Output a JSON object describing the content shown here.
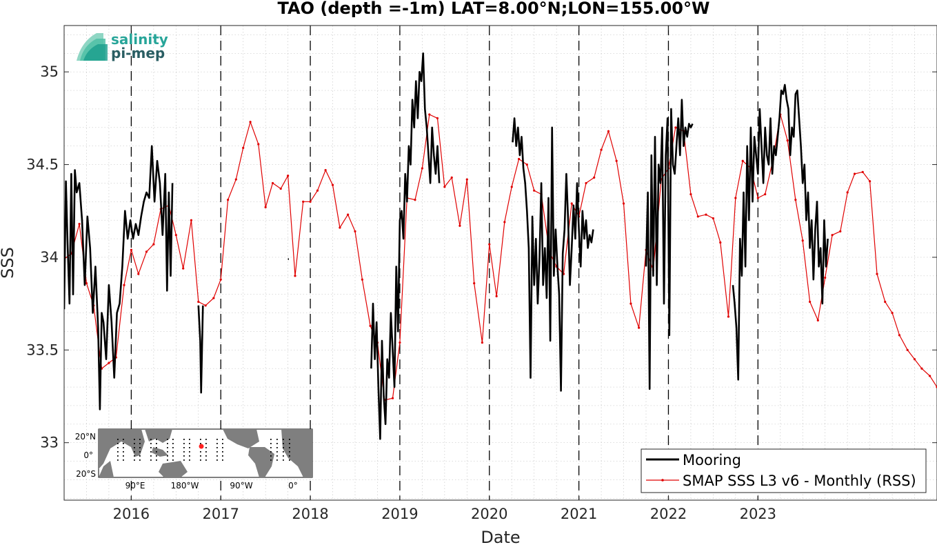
{
  "chart_data": {
    "type": "line",
    "title": "TAO (depth =-1m) LAT=8.00°N;LON=155.00°W",
    "xlabel": "Date",
    "ylabel": "SSS",
    "xlim": [
      2015.25,
      2025.0
    ],
    "ylim": [
      32.69,
      35.25
    ],
    "x_ticks": [
      2016,
      2017,
      2018,
      2019,
      2020,
      2021,
      2022,
      2023
    ],
    "x_tick_labels": [
      "2016",
      "2017",
      "2018",
      "2019",
      "2020",
      "2021",
      "2022",
      "2023"
    ],
    "y_ticks": [
      33,
      33.5,
      34,
      34.5,
      35
    ],
    "y_tick_labels": [
      "33",
      "33.5",
      "34",
      "34.5",
      "35"
    ],
    "grid": true,
    "year_dividers": [
      2016,
      2017,
      2018,
      2019,
      2020,
      2021,
      2022,
      2023
    ],
    "legend_position": "bottom-right",
    "colors": {
      "mooring": "#000000",
      "smap": "#e00000",
      "divider": "#000000",
      "grid": "#c8c8c8"
    },
    "series": [
      {
        "name": "Mooring",
        "style": "line",
        "segments": [
          {
            "x": [
              2015.25,
              2015.27,
              2015.29,
              2015.31,
              2015.33,
              2015.35,
              2015.37,
              2015.39,
              2015.42,
              2015.45,
              2015.48,
              2015.51,
              2015.54,
              2015.57,
              2015.6,
              2015.63,
              2015.65,
              2015.67,
              2015.69,
              2015.72,
              2015.75,
              2015.78,
              2015.81,
              2015.84,
              2015.87,
              2015.9,
              2015.93,
              2015.96,
              2015.99,
              2016.02,
              2016.05,
              2016.08,
              2016.11,
              2016.14,
              2016.17,
              2016.2,
              2016.23,
              2016.26,
              2016.29,
              2016.32,
              2016.35,
              2016.38,
              2016.4,
              2016.42,
              2016.44,
              2016.46
            ],
            "y": [
              33.72,
              34.41,
              34.05,
              33.75,
              34.45,
              33.8,
              34.47,
              34.35,
              34.4,
              34.2,
              33.85,
              34.22,
              34.05,
              33.7,
              33.95,
              33.62,
              33.18,
              33.7,
              33.65,
              33.45,
              33.85,
              33.65,
              33.35,
              33.7,
              33.75,
              33.95,
              34.25,
              34.1,
              34.2,
              34.1,
              34.18,
              34.12,
              34.22,
              34.3,
              34.35,
              34.32,
              34.6,
              34.3,
              34.52,
              34.4,
              34.12,
              34.45,
              33.82,
              34.35,
              33.9,
              34.4
            ]
          },
          {
            "x": [
              2016.75,
              2016.77,
              2016.78,
              2016.8
            ],
            "y": [
              33.74,
              33.55,
              33.27,
              33.74
            ]
          },
          {
            "x": [
              2017.75,
              2017.76
            ],
            "y": [
              33.99,
              33.99
            ]
          },
          {
            "x": [
              2018.68,
              2018.7,
              2018.72,
              2018.74,
              2018.76,
              2018.78,
              2018.8,
              2018.82,
              2018.84,
              2018.86,
              2018.88,
              2018.9,
              2018.92,
              2018.94,
              2018.96,
              2018.98,
              2019.0,
              2019.02,
              2019.04,
              2019.06,
              2019.08,
              2019.1,
              2019.12,
              2019.14,
              2019.16,
              2019.18,
              2019.2,
              2019.22,
              2019.24,
              2019.26,
              2019.28,
              2019.3,
              2019.32,
              2019.34,
              2019.36,
              2019.38,
              2019.4,
              2019.42,
              2019.44
            ],
            "y": [
              33.4,
              33.75,
              33.45,
              33.65,
              33.3,
              33.02,
              33.55,
              33.25,
              33.1,
              33.45,
              33.35,
              33.7,
              33.5,
              33.3,
              33.95,
              33.6,
              34.2,
              34.25,
              34.1,
              34.45,
              34.3,
              34.6,
              34.5,
              34.85,
              34.7,
              34.95,
              34.75,
              35.0,
              34.95,
              35.1,
              34.8,
              34.7,
              34.55,
              34.4,
              34.7,
              34.55,
              34.45,
              34.6,
              34.4
            ]
          },
          {
            "x": [
              2020.26,
              2020.28,
              2020.3,
              2020.32,
              2020.34,
              2020.36,
              2020.38,
              2020.4,
              2020.42,
              2020.44,
              2020.46,
              2020.48,
              2020.5,
              2020.52,
              2020.54,
              2020.56,
              2020.58,
              2020.6,
              2020.62,
              2020.64,
              2020.66,
              2020.68,
              2020.7,
              2020.72,
              2020.74,
              2020.76,
              2020.78,
              2020.8,
              2020.82,
              2020.84,
              2020.86,
              2020.88,
              2020.9,
              2020.92,
              2020.94,
              2020.96,
              2020.98,
              2021.0,
              2021.02,
              2021.04,
              2021.06,
              2021.08,
              2021.1,
              2021.12,
              2021.14,
              2021.16
            ],
            "y": [
              34.62,
              34.75,
              34.6,
              34.7,
              34.55,
              34.65,
              34.48,
              34.4,
              34.25,
              34.05,
              33.35,
              34.22,
              33.85,
              34.1,
              33.75,
              34.0,
              34.4,
              33.85,
              34.05,
              33.78,
              34.32,
              33.55,
              34.7,
              33.9,
              34.15,
              33.95,
              33.8,
              33.28,
              34.02,
              34.15,
              34.45,
              34.2,
              33.85,
              34.05,
              34.28,
              34.1,
              34.4,
              34.15,
              33.95,
              34.25,
              34.1,
              34.2,
              34.05,
              34.12,
              34.08,
              34.15
            ]
          },
          {
            "x": [
              2021.75,
              2021.77,
              2021.79,
              2021.81,
              2021.83,
              2021.85,
              2021.87,
              2021.89,
              2021.91,
              2021.93,
              2021.95,
              2021.97,
              2021.99,
              2022.01,
              2022.03,
              2022.05,
              2022.07,
              2022.09,
              2022.11,
              2022.13,
              2022.15,
              2022.17,
              2022.19,
              2022.21,
              2022.23,
              2022.25,
              2022.27
            ],
            "y": [
              33.95,
              34.35,
              33.29,
              34.55,
              33.9,
              34.65,
              33.85,
              34.5,
              34.4,
              34.7,
              33.75,
              34.55,
              34.75,
              33.58,
              34.8,
              34.5,
              34.45,
              34.6,
              34.75,
              34.55,
              34.85,
              34.6,
              34.7,
              34.65,
              34.72,
              34.7,
              34.72
            ]
          },
          {
            "x": [
              2022.72,
              2022.74,
              2022.76,
              2022.78,
              2022.8,
              2022.82,
              2022.84,
              2022.86,
              2022.88,
              2022.9,
              2022.92,
              2022.94,
              2022.96,
              2022.98,
              2023.0,
              2023.02,
              2023.04,
              2023.06,
              2023.08,
              2023.1,
              2023.12,
              2023.14,
              2023.16,
              2023.18,
              2023.2,
              2023.22,
              2023.24,
              2023.26,
              2023.28,
              2023.3,
              2023.32,
              2023.34,
              2023.36,
              2023.38,
              2023.4,
              2023.42,
              2023.44,
              2023.46,
              2023.48,
              2023.5,
              2023.52,
              2023.54,
              2023.56,
              2023.58,
              2023.6,
              2023.62,
              2023.64,
              2023.66,
              2023.68,
              2023.7,
              2023.72,
              2023.74,
              2023.76,
              2023.78
            ],
            "y": [
              33.85,
              33.75,
              33.62,
              33.34,
              34.1,
              33.9,
              34.35,
              33.95,
              34.6,
              34.2,
              34.7,
              34.3,
              34.65,
              34.55,
              34.45,
              34.8,
              34.6,
              34.4,
              34.7,
              34.55,
              34.5,
              34.75,
              34.45,
              34.6,
              34.55,
              34.65,
              34.75,
              34.9,
              34.88,
              34.93,
              34.85,
              34.8,
              34.55,
              34.7,
              34.65,
              34.88,
              34.9,
              34.75,
              34.6,
              34.4,
              34.5,
              34.2,
              34.35,
              34.05,
              34.2,
              33.88,
              34.15,
              34.3,
              33.95,
              34.05,
              33.75,
              34.2,
              33.95,
              34.1
            ]
          }
        ]
      },
      {
        "name": "SMAP SSS L3 v6 - Monthly (RSS)",
        "style": "line-marker",
        "x": [
          2015.25,
          2015.33,
          2015.42,
          2015.5,
          2015.58,
          2015.67,
          2015.75,
          2015.83,
          2015.92,
          2016.0,
          2016.08,
          2016.17,
          2016.25,
          2016.33,
          2016.42,
          2016.5,
          2016.58,
          2016.67,
          2016.75,
          2016.83,
          2016.92,
          2017.0,
          2017.08,
          2017.17,
          2017.25,
          2017.33,
          2017.42,
          2017.5,
          2017.58,
          2017.67,
          2017.75,
          2017.83,
          2017.92,
          2018.0,
          2018.08,
          2018.17,
          2018.25,
          2018.33,
          2018.42,
          2018.5,
          2018.58,
          2018.67,
          2018.75,
          2018.83,
          2018.92,
          2019.0,
          2019.08,
          2019.17,
          2019.25,
          2019.33,
          2019.42,
          2019.5,
          2019.58,
          2019.67,
          2019.75,
          2019.83,
          2019.92,
          2020.0,
          2020.08,
          2020.17,
          2020.25,
          2020.33,
          2020.42,
          2020.5,
          2020.58,
          2020.67,
          2020.75,
          2020.83,
          2020.92,
          2021.0,
          2021.08,
          2021.17,
          2021.25,
          2021.33,
          2021.42,
          2021.5,
          2021.58,
          2021.67,
          2021.75,
          2021.83,
          2021.92,
          2022.0,
          2022.08,
          2022.17,
          2022.25,
          2022.33,
          2022.42,
          2022.5,
          2022.58,
          2022.67,
          2022.75,
          2022.83,
          2022.92,
          2023.0,
          2023.08,
          2023.17,
          2023.25,
          2023.33,
          2023.42,
          2023.5,
          2023.58,
          2023.67,
          2023.75,
          2023.83,
          2023.92,
          2024.0,
          2024.08,
          2024.17,
          2024.25,
          2024.33,
          2024.42,
          2024.5,
          2024.58,
          2024.67,
          2024.75,
          2024.83,
          2024.92,
          2025.0
        ],
        "y": [
          33.99,
          34.02,
          34.18,
          33.86,
          33.74,
          33.4,
          33.43,
          33.46,
          33.85,
          34.04,
          33.91,
          34.03,
          34.07,
          34.26,
          34.28,
          34.12,
          33.94,
          34.2,
          33.76,
          33.74,
          33.78,
          33.88,
          34.31,
          34.42,
          34.59,
          34.73,
          34.61,
          34.27,
          34.4,
          34.37,
          34.44,
          33.9,
          34.3,
          34.3,
          34.36,
          34.47,
          34.39,
          34.16,
          34.23,
          34.14,
          33.88,
          33.63,
          33.54,
          33.23,
          33.24,
          33.54,
          34.32,
          34.31,
          34.48,
          34.77,
          34.75,
          34.38,
          34.43,
          34.17,
          34.42,
          33.86,
          33.54,
          34.07,
          33.79,
          34.19,
          34.38,
          34.53,
          34.5,
          34.36,
          34.34,
          34.03,
          33.95,
          33.91,
          34.29,
          34.22,
          34.4,
          34.43,
          34.58,
          34.68,
          34.52,
          34.29,
          33.75,
          33.62,
          34.04,
          33.93,
          34.42,
          34.48,
          34.7,
          34.68,
          34.34,
          34.22,
          34.23,
          34.21,
          34.08,
          33.68,
          34.32,
          34.52,
          34.48,
          34.32,
          34.34,
          34.53,
          34.77,
          34.63,
          34.31,
          34.09,
          33.76,
          33.66,
          33.89,
          34.12,
          34.14,
          34.35,
          34.45,
          34.46,
          34.41,
          33.91,
          33.76,
          33.7,
          33.58,
          33.5,
          33.45,
          33.4,
          33.36,
          33.3
        ]
      }
    ],
    "inset_map": {
      "y_tick_labels": [
        "20°N",
        "0°",
        "20°S"
      ],
      "x_tick_labels": [
        "90°E",
        "180°W",
        "90°W",
        "0°"
      ],
      "ocean_color": "#ffffff",
      "land_color": "#7f7f7f",
      "highlight_color": "#ff2020"
    },
    "logo": {
      "line1": "salinity",
      "line2": "pi-mep"
    }
  }
}
